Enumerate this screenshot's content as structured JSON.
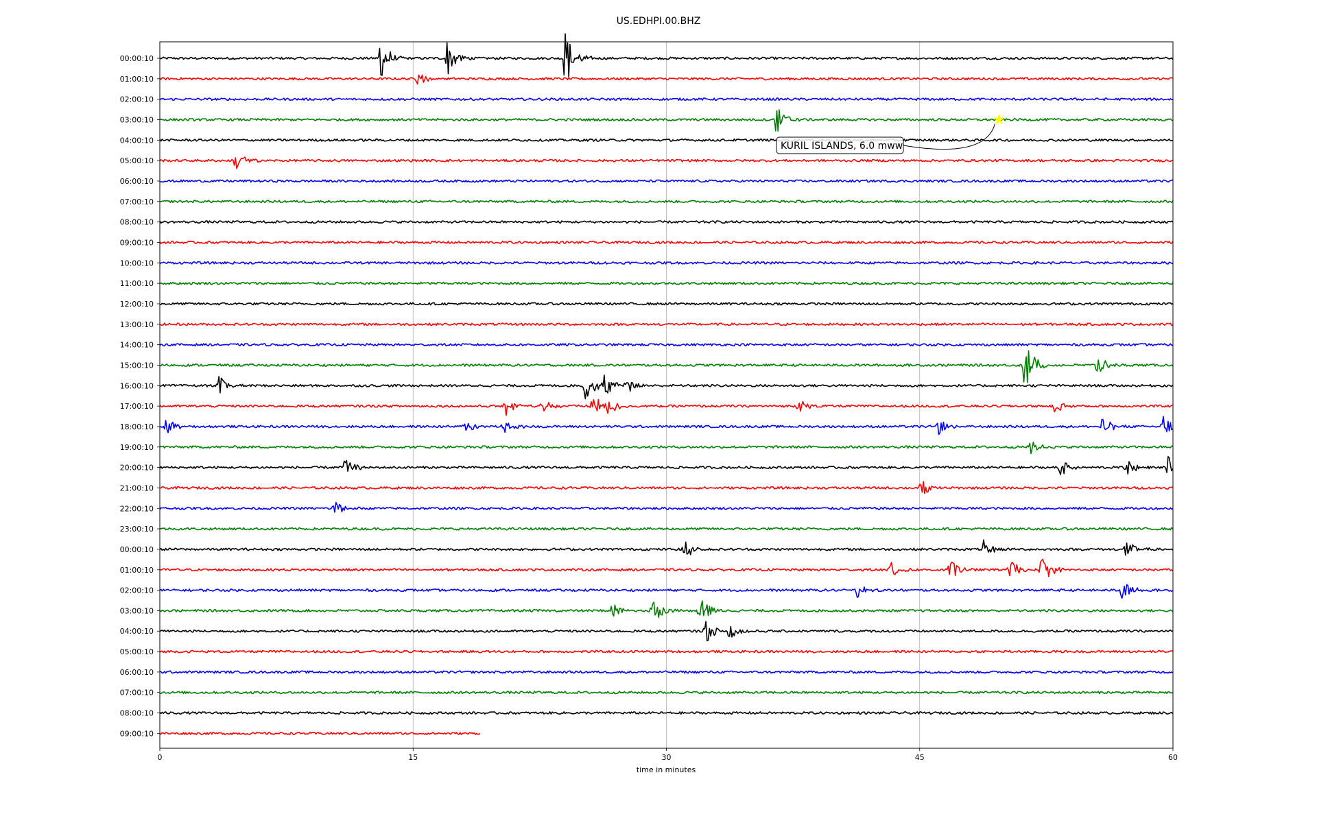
{
  "chart_data": {
    "type": "line",
    "title": "US.EDHPI.00.BHZ",
    "xlabel": "time in minutes",
    "ylabel": "",
    "xlim": [
      0,
      60
    ],
    "x_ticks": [
      "0",
      "15",
      "30",
      "45",
      "60"
    ],
    "grid": "vertical",
    "row_labels": [
      "00:00:10",
      "01:00:10",
      "02:00:10",
      "03:00:10",
      "04:00:10",
      "05:00:10",
      "06:00:10",
      "07:00:10",
      "08:00:10",
      "09:00:10",
      "10:00:10",
      "11:00:10",
      "12:00:10",
      "13:00:10",
      "14:00:10",
      "15:00:10",
      "16:00:10",
      "17:00:10",
      "18:00:10",
      "19:00:10",
      "20:00:10",
      "21:00:10",
      "22:00:10",
      "23:00:10",
      "00:00:10",
      "01:00:10",
      "02:00:10",
      "03:00:10",
      "04:00:10",
      "05:00:10",
      "06:00:10",
      "07:00:10",
      "08:00:10",
      "09:00:10"
    ],
    "trace_colors": [
      "#000000",
      "#ff0000",
      "#0000ff",
      "#008000"
    ],
    "last_trace_end_minute": 19,
    "events": [
      {
        "row": 0,
        "minute": 13,
        "amp": 1.4
      },
      {
        "row": 0,
        "minute": 17,
        "amp": 1.0
      },
      {
        "row": 0,
        "minute": 24,
        "amp": 1.7
      },
      {
        "row": 1,
        "minute": 15.3,
        "amp": 0.4
      },
      {
        "row": 3,
        "minute": 36.5,
        "amp": 0.8
      },
      {
        "row": 5,
        "minute": 4.5,
        "amp": 0.6
      },
      {
        "row": 15,
        "minute": 51.2,
        "amp": 1.5
      },
      {
        "row": 15,
        "minute": 55.5,
        "amp": 0.6
      },
      {
        "row": 16,
        "minute": 3.5,
        "amp": 0.5
      },
      {
        "row": 16,
        "minute": 25.2,
        "amp": 0.9
      },
      {
        "row": 16,
        "minute": 26.2,
        "amp": 0.8
      },
      {
        "row": 16,
        "minute": 27.6,
        "amp": 0.5
      },
      {
        "row": 17,
        "minute": 20.5,
        "amp": 0.5
      },
      {
        "row": 17,
        "minute": 22.6,
        "amp": 0.4
      },
      {
        "row": 17,
        "minute": 25.6,
        "amp": 0.7
      },
      {
        "row": 17,
        "minute": 26.4,
        "amp": 0.9
      },
      {
        "row": 17,
        "minute": 37.8,
        "amp": 0.4
      },
      {
        "row": 17,
        "minute": 53.0,
        "amp": 0.4
      },
      {
        "row": 18,
        "minute": 0.4,
        "amp": 0.5
      },
      {
        "row": 18,
        "minute": 18.0,
        "amp": 0.6
      },
      {
        "row": 18,
        "minute": 20.3,
        "amp": 0.5
      },
      {
        "row": 18,
        "minute": 46.1,
        "amp": 0.5
      },
      {
        "row": 18,
        "minute": 55.8,
        "amp": 0.6
      },
      {
        "row": 18,
        "minute": 59.4,
        "amp": 0.7
      },
      {
        "row": 19,
        "minute": 51.5,
        "amp": 0.5
      },
      {
        "row": 20,
        "minute": 10.9,
        "amp": 0.5
      },
      {
        "row": 20,
        "minute": 53.3,
        "amp": 0.5
      },
      {
        "row": 20,
        "minute": 57.2,
        "amp": 0.6
      },
      {
        "row": 20,
        "minute": 59.7,
        "amp": 0.6
      },
      {
        "row": 21,
        "minute": 45.1,
        "amp": 0.6
      },
      {
        "row": 22,
        "minute": 10.3,
        "amp": 0.6
      },
      {
        "row": 24,
        "minute": 31.0,
        "amp": 0.6
      },
      {
        "row": 24,
        "minute": 48.8,
        "amp": 0.5
      },
      {
        "row": 24,
        "minute": 57.2,
        "amp": 0.5
      },
      {
        "row": 25,
        "minute": 43.3,
        "amp": 0.6
      },
      {
        "row": 25,
        "minute": 46.8,
        "amp": 0.6
      },
      {
        "row": 25,
        "minute": 50.3,
        "amp": 0.6
      },
      {
        "row": 25,
        "minute": 52.2,
        "amp": 0.8
      },
      {
        "row": 26,
        "minute": 41.3,
        "amp": 0.4
      },
      {
        "row": 26,
        "minute": 57.0,
        "amp": 0.6
      },
      {
        "row": 27,
        "minute": 26.8,
        "amp": 0.5
      },
      {
        "row": 27,
        "minute": 29.1,
        "amp": 0.9
      },
      {
        "row": 27,
        "minute": 31.9,
        "amp": 1.0
      },
      {
        "row": 28,
        "minute": 32.3,
        "amp": 0.7
      },
      {
        "row": 28,
        "minute": 33.7,
        "amp": 0.5
      }
    ],
    "annotations": [
      {
        "text": "KURIL ISLANDS, 6.0 mww",
        "row": 3,
        "minute": 49.7,
        "marker": "star",
        "marker_color": "#ffff00"
      }
    ]
  }
}
